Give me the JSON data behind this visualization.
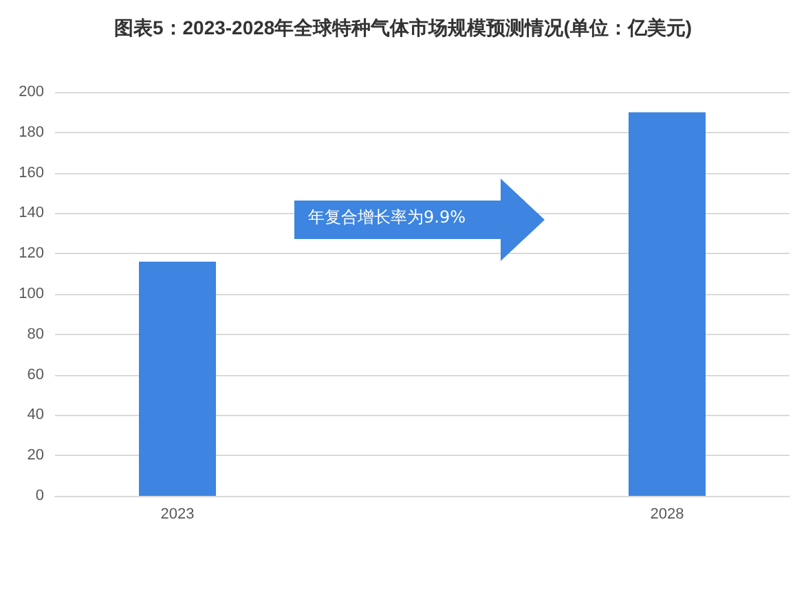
{
  "chart_data": {
    "type": "bar",
    "title": "图表5：2023-2028年全球特种气体市场规模预测情况(单位：亿美元)",
    "categories": [
      "2023",
      null,
      "2028"
    ],
    "values": [
      116,
      null,
      190
    ],
    "color": "#3d85e0",
    "ylim": [
      0,
      200
    ],
    "yticks": [
      0,
      20,
      40,
      60,
      80,
      100,
      120,
      140,
      160,
      180,
      200
    ],
    "grid": "y",
    "annotations": [
      "年复合增长率为9.9%"
    ]
  }
}
